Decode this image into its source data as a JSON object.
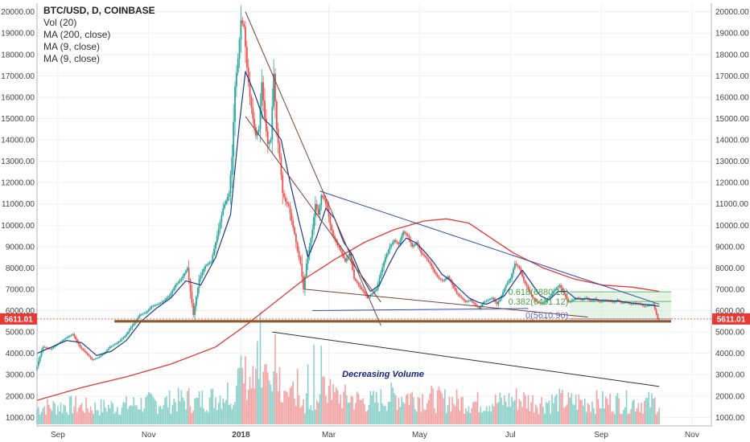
{
  "legend": {
    "symbol": "BTC/USD, D, COINBASE",
    "items": [
      "Vol (20)",
      "MA (200, close)",
      "MA (9, close)",
      "MA (9, close)"
    ]
  },
  "price_tag": {
    "value": "5611.01",
    "color": "#e53935"
  },
  "annotations": {
    "volume_note": "Decreasing Volume",
    "fib_labels": [
      "0.618(6880.10)",
      "0.382(6431.12)",
      "0(5610.90)"
    ]
  },
  "colors": {
    "up": "#26a69a",
    "down": "#ef5350",
    "ma200": "#e53935",
    "ma9": "#1e3a8a",
    "trend_dark": "#7b3f3f",
    "trend_blue": "#3949ab",
    "support": "#8d5a2b",
    "vol_up": "#80cbc4",
    "vol_down": "#ef9a9a",
    "grid": "#eef0f3",
    "fib_fill": "#c8e6c9"
  },
  "chart_data": {
    "type": "candlestick",
    "title": "BTC/USD, D, COINBASE",
    "x_ticks": [
      "Sep",
      "Nov",
      "2018",
      "Mar",
      "May",
      "Jul",
      "Sep",
      "Nov"
    ],
    "y_ticks": [
      "1000.00",
      "2000.00",
      "3000.00",
      "4000.00",
      "5000.00",
      "6000.00",
      "7000.00",
      "8000.00",
      "9000.00",
      "10000.00",
      "11000.00",
      "12000.00",
      "13000.00",
      "14000.00",
      "15000.00",
      "16000.00",
      "17000.00",
      "18000.00",
      "19000.00",
      "20000.00"
    ],
    "y_tick_values": [
      1000,
      2000,
      3000,
      4000,
      5000,
      6000,
      7000,
      8000,
      9000,
      10000,
      11000,
      12000,
      13000,
      14000,
      15000,
      16000,
      17000,
      18000,
      19000,
      20000
    ],
    "ylim": [
      600,
      20400
    ],
    "x_range_days": [
      0,
      453
    ],
    "month_tick_days": [
      14,
      75,
      137,
      196,
      257,
      318,
      379,
      440
    ],
    "price_path": [
      [
        0,
        3200
      ],
      [
        5,
        4300
      ],
      [
        10,
        4200
      ],
      [
        15,
        4450
      ],
      [
        20,
        4700
      ],
      [
        25,
        4900
      ],
      [
        30,
        4300
      ],
      [
        34,
        4000
      ],
      [
        38,
        3700
      ],
      [
        42,
        3800
      ],
      [
        46,
        4000
      ],
      [
        50,
        4300
      ],
      [
        55,
        4500
      ],
      [
        60,
        4800
      ],
      [
        65,
        5300
      ],
      [
        70,
        5800
      ],
      [
        74,
        5900
      ],
      [
        78,
        6200
      ],
      [
        82,
        6300
      ],
      [
        86,
        6450
      ],
      [
        90,
        6700
      ],
      [
        94,
        7200
      ],
      [
        98,
        7500
      ],
      [
        102,
        8000
      ],
      [
        106,
        5800
      ],
      [
        110,
        7500
      ],
      [
        114,
        8100
      ],
      [
        118,
        8300
      ],
      [
        122,
        9500
      ],
      [
        126,
        10800
      ],
      [
        130,
        11500
      ],
      [
        132,
        13200
      ],
      [
        134,
        16500
      ],
      [
        136,
        17800
      ],
      [
        138,
        19600
      ],
      [
        140,
        19300
      ],
      [
        142,
        17400
      ],
      [
        144,
        16000
      ],
      [
        146,
        15000
      ],
      [
        148,
        14200
      ],
      [
        150,
        14500
      ],
      [
        152,
        16700
      ],
      [
        154,
        15000
      ],
      [
        156,
        13800
      ],
      [
        158,
        14000
      ],
      [
        160,
        17100
      ],
      [
        162,
        14500
      ],
      [
        164,
        13200
      ],
      [
        166,
        11500
      ],
      [
        168,
        11100
      ],
      [
        170,
        10900
      ],
      [
        172,
        10200
      ],
      [
        174,
        9600
      ],
      [
        176,
        8800
      ],
      [
        178,
        8200
      ],
      [
        180,
        7000
      ],
      [
        182,
        8200
      ],
      [
        184,
        9000
      ],
      [
        186,
        9800
      ],
      [
        188,
        11000
      ],
      [
        190,
        10500
      ],
      [
        192,
        11400
      ],
      [
        194,
        11200
      ],
      [
        196,
        10800
      ],
      [
        198,
        10000
      ],
      [
        200,
        9500
      ],
      [
        202,
        9200
      ],
      [
        205,
        8800
      ],
      [
        208,
        8300
      ],
      [
        211,
        8700
      ],
      [
        214,
        7500
      ],
      [
        217,
        7200
      ],
      [
        220,
        6900
      ],
      [
        223,
        6600
      ],
      [
        226,
        6800
      ],
      [
        229,
        7000
      ],
      [
        232,
        7800
      ],
      [
        235,
        8500
      ],
      [
        238,
        9000
      ],
      [
        241,
        9300
      ],
      [
        244,
        9100
      ],
      [
        247,
        9700
      ],
      [
        250,
        9500
      ],
      [
        253,
        9000
      ],
      [
        256,
        9200
      ],
      [
        259,
        8700
      ],
      [
        262,
        8500
      ],
      [
        265,
        8200
      ],
      [
        268,
        7800
      ],
      [
        271,
        7500
      ],
      [
        274,
        7400
      ],
      [
        277,
        7600
      ],
      [
        280,
        7200
      ],
      [
        283,
        6800
      ],
      [
        286,
        6600
      ],
      [
        289,
        6400
      ],
      [
        292,
        6500
      ],
      [
        295,
        6300
      ],
      [
        298,
        6100
      ],
      [
        301,
        6400
      ],
      [
        304,
        6500
      ],
      [
        307,
        6600
      ],
      [
        310,
        6300
      ],
      [
        313,
        6700
      ],
      [
        316,
        7200
      ],
      [
        319,
        7500
      ],
      [
        322,
        8200
      ],
      [
        325,
        8000
      ],
      [
        328,
        7400
      ],
      [
        331,
        7000
      ],
      [
        334,
        6600
      ],
      [
        337,
        6400
      ],
      [
        340,
        6300
      ],
      [
        343,
        6500
      ],
      [
        346,
        6700
      ],
      [
        349,
        7000
      ],
      [
        352,
        7200
      ],
      [
        355,
        6800
      ],
      [
        358,
        6400
      ],
      [
        361,
        6500
      ],
      [
        364,
        6600
      ],
      [
        367,
        6500
      ],
      [
        370,
        6600
      ],
      [
        373,
        6450
      ],
      [
        376,
        6550
      ],
      [
        379,
        6400
      ],
      [
        382,
        6500
      ],
      [
        385,
        6450
      ],
      [
        388,
        6400
      ],
      [
        391,
        6500
      ],
      [
        394,
        6350
      ],
      [
        397,
        6400
      ],
      [
        400,
        6300
      ],
      [
        403,
        6350
      ],
      [
        406,
        6300
      ],
      [
        409,
        6200
      ],
      [
        412,
        6250
      ],
      [
        415,
        6300
      ],
      [
        418,
        5611
      ]
    ],
    "ma200": [
      [
        0,
        1800
      ],
      [
        30,
        2400
      ],
      [
        60,
        2900
      ],
      [
        90,
        3500
      ],
      [
        120,
        4300
      ],
      [
        140,
        5300
      ],
      [
        160,
        6400
      ],
      [
        180,
        7500
      ],
      [
        200,
        8400
      ],
      [
        220,
        9200
      ],
      [
        240,
        9800
      ],
      [
        260,
        10200
      ],
      [
        275,
        10300
      ],
      [
        290,
        10100
      ],
      [
        305,
        9400
      ],
      [
        320,
        8700
      ],
      [
        340,
        8000
      ],
      [
        360,
        7500
      ],
      [
        380,
        7200
      ],
      [
        400,
        7100
      ],
      [
        418,
        6900
      ]
    ],
    "ma9": [
      [
        0,
        4000
      ],
      [
        10,
        4300
      ],
      [
        20,
        4600
      ],
      [
        30,
        4500
      ],
      [
        40,
        3900
      ],
      [
        50,
        4100
      ],
      [
        60,
        4600
      ],
      [
        70,
        5500
      ],
      [
        80,
        6100
      ],
      [
        90,
        6600
      ],
      [
        100,
        7400
      ],
      [
        110,
        7200
      ],
      [
        120,
        8500
      ],
      [
        130,
        10500
      ],
      [
        136,
        14800
      ],
      [
        140,
        17200
      ],
      [
        146,
        16200
      ],
      [
        152,
        15000
      ],
      [
        158,
        14600
      ],
      [
        164,
        14000
      ],
      [
        170,
        12000
      ],
      [
        176,
        10200
      ],
      [
        182,
        8500
      ],
      [
        188,
        9500
      ],
      [
        194,
        10800
      ],
      [
        200,
        10300
      ],
      [
        206,
        9200
      ],
      [
        212,
        8600
      ],
      [
        218,
        7600
      ],
      [
        224,
        6900
      ],
      [
        230,
        7200
      ],
      [
        236,
        8100
      ],
      [
        242,
        8900
      ],
      [
        248,
        9400
      ],
      [
        254,
        9200
      ],
      [
        260,
        8800
      ],
      [
        266,
        8300
      ],
      [
        272,
        7700
      ],
      [
        278,
        7400
      ],
      [
        284,
        7000
      ],
      [
        290,
        6600
      ],
      [
        296,
        6400
      ],
      [
        302,
        6300
      ],
      [
        308,
        6500
      ],
      [
        314,
        6700
      ],
      [
        320,
        7300
      ],
      [
        326,
        7900
      ],
      [
        332,
        7300
      ],
      [
        338,
        6700
      ],
      [
        344,
        6500
      ],
      [
        350,
        6900
      ],
      [
        356,
        6900
      ],
      [
        362,
        6550
      ],
      [
        370,
        6550
      ],
      [
        380,
        6480
      ],
      [
        390,
        6450
      ],
      [
        400,
        6350
      ],
      [
        410,
        6280
      ],
      [
        418,
        6200
      ]
    ],
    "volume_ylim": [
      0,
      8000
    ],
    "trendlines": [
      {
        "from": [
          140,
          20000
        ],
        "to": [
          231,
          5300
        ],
        "color": "trend_dark"
      },
      {
        "from": [
          140,
          15100
        ],
        "to": [
          231,
          6400
        ],
        "color": "trend_dark"
      },
      {
        "from": [
          190,
          11600
        ],
        "to": [
          418,
          6300
        ],
        "color": "trend_blue"
      },
      {
        "from": [
          158,
          5000
        ],
        "to": [
          418,
          2450
        ],
        "color": "dark"
      },
      {
        "from": [
          180,
          7000
        ],
        "to": [
          370,
          5700
        ],
        "color": "trend_dark"
      },
      {
        "from": [
          185,
          6000
        ],
        "to": [
          330,
          6100
        ],
        "color": "trend_blue"
      }
    ],
    "support_line": {
      "from": [
        52,
        5500
      ],
      "to": [
        426,
        5500
      ]
    },
    "fib_zone": {
      "from_day": 358,
      "to_day": 426,
      "levels": [
        5611,
        6431,
        6880
      ]
    }
  }
}
